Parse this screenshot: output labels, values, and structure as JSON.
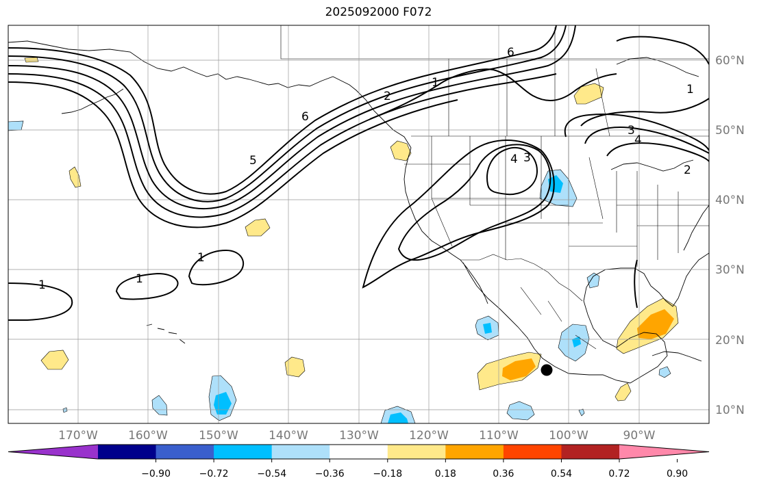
{
  "title": "2025092000 F072",
  "colors": {
    "contour": "#000000",
    "grid": "#999999",
    "coast": "#000000",
    "neg_strong": "#00bfff",
    "neg_weak": "#aee0fa",
    "pos_weak": "#ffe98a",
    "pos_strong": "#ffa500",
    "marker": "#000000"
  },
  "map": {
    "projection": "PlateCarree",
    "lon_range": [
      -180,
      -80
    ],
    "lat_range": [
      8,
      65
    ],
    "lat_labels": [
      "10°N",
      "20°N",
      "30°N",
      "40°N",
      "50°N",
      "60°N"
    ],
    "lon_labels": [
      "170°W",
      "160°W",
      "150°W",
      "140°W",
      "130°W",
      "120°W",
      "110°W",
      "100°W",
      "90°W"
    ],
    "marker": {
      "name": "storm-center",
      "lon": -103.2,
      "lat": 15.8
    }
  },
  "contour_labels": [
    "1",
    "1",
    "1",
    "6",
    "5",
    "2",
    "1",
    "6",
    "4",
    "3",
    "3",
    "4",
    "1",
    "2"
  ],
  "colorbar": {
    "colors": [
      "#9932cc",
      "#00008b",
      "#3a5fcd",
      "#00bfff",
      "#aee0fa",
      "#ffffff",
      "#ffe98a",
      "#ffa500",
      "#ff4500",
      "#b22222",
      "#ff88aa"
    ],
    "ticks": [
      "−0.90",
      "−0.72",
      "−0.54",
      "−0.36",
      "−0.18",
      "0.18",
      "0.36",
      "0.54",
      "0.72",
      "0.90"
    ],
    "extend": "both"
  }
}
